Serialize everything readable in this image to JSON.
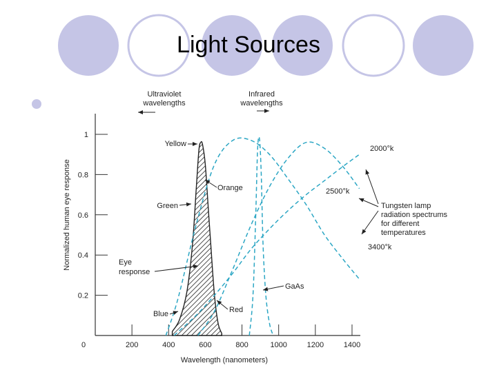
{
  "slide": {
    "title": "Light Sources"
  },
  "colors": {
    "decor_circle": "#c5c5e6",
    "curve": "#2ba6c4",
    "axis": "#333333",
    "text": "#222222"
  },
  "chart_data": {
    "type": "line",
    "xlabel": "Wavelength (nanometers)",
    "ylabel": "Normalized human eye response",
    "xlim": [
      0,
      1400
    ],
    "ylim": [
      0,
      1.0
    ],
    "x_ticks": [
      0,
      200,
      400,
      600,
      800,
      1000,
      1200,
      1400
    ],
    "y_ticks": [
      0.2,
      0.4,
      0.6,
      0.8,
      1
    ],
    "series": [
      {
        "style": "eye-response-filled",
        "x": [
          420,
          460,
          500,
          530,
          550,
          565,
          575,
          585,
          600,
          615,
          630,
          650,
          670,
          690
        ],
        "y": [
          0.02,
          0.08,
          0.22,
          0.45,
          0.72,
          0.92,
          0.96,
          0.95,
          0.85,
          0.65,
          0.45,
          0.2,
          0.06,
          0.01
        ]
      },
      {
        "style": "dashed",
        "label": "2000°k",
        "x": [
          430,
          550,
          650,
          750,
          850,
          950,
          1050,
          1150,
          1250,
          1350,
          1440
        ],
        "y": [
          0.0,
          0.1,
          0.2,
          0.31,
          0.43,
          0.53,
          0.62,
          0.7,
          0.77,
          0.84,
          0.9
        ]
      },
      {
        "style": "dashed",
        "label": "2500°k",
        "x": [
          560,
          650,
          750,
          850,
          950,
          1050,
          1150,
          1250,
          1350,
          1440
        ],
        "y": [
          0.0,
          0.12,
          0.33,
          0.55,
          0.74,
          0.88,
          0.96,
          0.93,
          0.84,
          0.73
        ]
      },
      {
        "style": "dashed",
        "label": "3400°k",
        "x": [
          385,
          450,
          550,
          650,
          750,
          850,
          950,
          1050,
          1150,
          1250,
          1350,
          1440
        ],
        "y": [
          0.0,
          0.18,
          0.55,
          0.85,
          0.97,
          0.97,
          0.9,
          0.78,
          0.65,
          0.5,
          0.38,
          0.28
        ]
      },
      {
        "style": "dashed",
        "label": "GaAs",
        "x": [
          840,
          860,
          875,
          885,
          895,
          905,
          915,
          930,
          950,
          970
        ],
        "y": [
          0.0,
          0.2,
          0.6,
          0.92,
          0.98,
          0.8,
          0.45,
          0.2,
          0.06,
          0.0
        ]
      }
    ],
    "annotations": [
      {
        "text": "Ultraviolet",
        "group": "uv"
      },
      {
        "text": "wavelengths",
        "group": "uv"
      },
      {
        "text": "Infrared",
        "group": "ir"
      },
      {
        "text": "wavelengths",
        "group": "ir"
      },
      {
        "text": "Yellow"
      },
      {
        "text": "Orange"
      },
      {
        "text": "Green"
      },
      {
        "text": "Eye"
      },
      {
        "text": "response"
      },
      {
        "text": "Blue"
      },
      {
        "text": "Red"
      },
      {
        "text": "GaAs"
      },
      {
        "text": "2000°k"
      },
      {
        "text": "2500°k"
      },
      {
        "text": "3400°k"
      },
      {
        "text": "Tungsten lamp"
      },
      {
        "text": "radiation spectrums"
      },
      {
        "text": "for different"
      },
      {
        "text": "temperatures"
      }
    ]
  }
}
